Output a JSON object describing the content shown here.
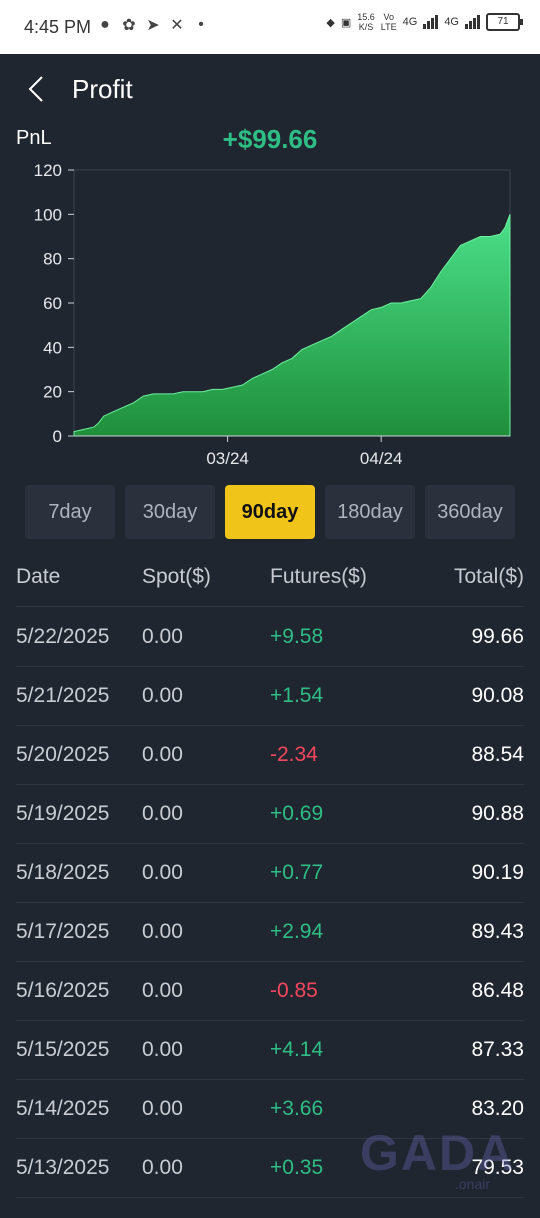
{
  "status_bar": {
    "time": "4:45 PM",
    "net_speed": "15.6",
    "net_unit": "K/S",
    "volte_top": "Vo",
    "volte_bottom": "LTE",
    "net1": "4G",
    "net2": "4G",
    "battery": "71"
  },
  "header": {
    "title": "Profit"
  },
  "summary": {
    "label": "PnL",
    "value": "+$99.66"
  },
  "colors": {
    "background": "#1f2630",
    "positive": "#2ebd85",
    "negative": "#f6465d",
    "accent_tab": "#f0c419",
    "area_top": "#4be08a",
    "area_bottom": "#1f8f3a"
  },
  "range_tabs": [
    {
      "label": "7day",
      "active": false
    },
    {
      "label": "30day",
      "active": false
    },
    {
      "label": "90day",
      "active": true
    },
    {
      "label": "180day",
      "active": false
    },
    {
      "label": "360day",
      "active": false
    }
  ],
  "table": {
    "headers": {
      "date": "Date",
      "spot": "Spot($)",
      "futures": "Futures($)",
      "total": "Total($)"
    },
    "rows": [
      {
        "date": "5/22/2025",
        "spot": "0.00",
        "futures": "+9.58",
        "total": "99.66",
        "sign": "pos"
      },
      {
        "date": "5/21/2025",
        "spot": "0.00",
        "futures": "+1.54",
        "total": "90.08",
        "sign": "pos"
      },
      {
        "date": "5/20/2025",
        "spot": "0.00",
        "futures": "-2.34",
        "total": "88.54",
        "sign": "neg"
      },
      {
        "date": "5/19/2025",
        "spot": "0.00",
        "futures": "+0.69",
        "total": "90.88",
        "sign": "pos"
      },
      {
        "date": "5/18/2025",
        "spot": "0.00",
        "futures": "+0.77",
        "total": "90.19",
        "sign": "pos"
      },
      {
        "date": "5/17/2025",
        "spot": "0.00",
        "futures": "+2.94",
        "total": "89.43",
        "sign": "pos"
      },
      {
        "date": "5/16/2025",
        "spot": "0.00",
        "futures": "-0.85",
        "total": "86.48",
        "sign": "neg"
      },
      {
        "date": "5/15/2025",
        "spot": "0.00",
        "futures": "+4.14",
        "total": "87.33",
        "sign": "pos"
      },
      {
        "date": "5/14/2025",
        "spot": "0.00",
        "futures": "+3.66",
        "total": "83.20",
        "sign": "pos"
      },
      {
        "date": "5/13/2025",
        "spot": "0.00",
        "futures": "+0.35",
        "total": "79.53",
        "sign": "pos"
      }
    ]
  },
  "chart_data": {
    "type": "area",
    "title": "",
    "xlabel": "",
    "ylabel": "",
    "ylim": [
      0,
      120
    ],
    "yticks": [
      0,
      20,
      40,
      60,
      80,
      100,
      120
    ],
    "xticks": [
      {
        "label": "03/24",
        "x": 31
      },
      {
        "label": "04/24",
        "x": 62
      }
    ],
    "xlim": [
      0,
      88
    ],
    "grid": false,
    "series": [
      {
        "values": [
          [
            0,
            2
          ],
          [
            2,
            3
          ],
          [
            4,
            4
          ],
          [
            5,
            6
          ],
          [
            6,
            9
          ],
          [
            8,
            11
          ],
          [
            10,
            13
          ],
          [
            12,
            15
          ],
          [
            14,
            18
          ],
          [
            16,
            19
          ],
          [
            18,
            19
          ],
          [
            20,
            19
          ],
          [
            22,
            20
          ],
          [
            24,
            20
          ],
          [
            26,
            20
          ],
          [
            28,
            21
          ],
          [
            30,
            21
          ],
          [
            32,
            22
          ],
          [
            34,
            23
          ],
          [
            36,
            26
          ],
          [
            38,
            28
          ],
          [
            40,
            30
          ],
          [
            42,
            33
          ],
          [
            44,
            35
          ],
          [
            46,
            39
          ],
          [
            48,
            41
          ],
          [
            50,
            43
          ],
          [
            52,
            45
          ],
          [
            54,
            48
          ],
          [
            56,
            51
          ],
          [
            58,
            54
          ],
          [
            60,
            57
          ],
          [
            62,
            58
          ],
          [
            64,
            60
          ],
          [
            66,
            60
          ],
          [
            68,
            61
          ],
          [
            70,
            62
          ],
          [
            72,
            67
          ],
          [
            74,
            74
          ],
          [
            76,
            80
          ],
          [
            78,
            86
          ],
          [
            80,
            88
          ],
          [
            82,
            90
          ],
          [
            84,
            90
          ],
          [
            86,
            91
          ],
          [
            87,
            94
          ],
          [
            88,
            100
          ]
        ]
      }
    ]
  },
  "watermark": {
    "text": "GADA",
    "sub": ".onair"
  }
}
